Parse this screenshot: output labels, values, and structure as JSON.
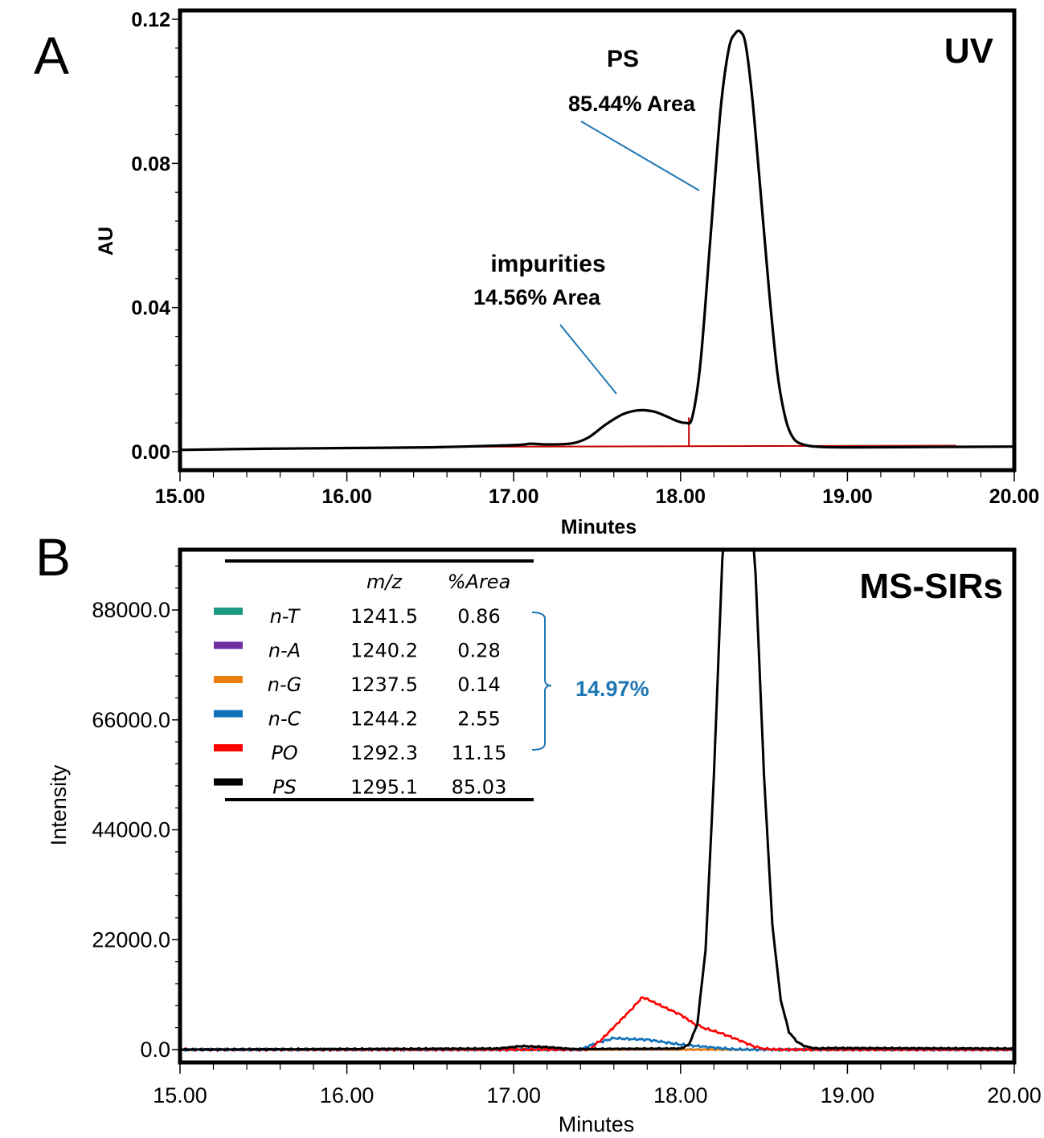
{
  "chart_data": [
    {
      "panel": "A",
      "type": "line",
      "title": "UV",
      "xlabel": "Minutes",
      "ylabel": "AU",
      "xlim": [
        15.0,
        20.0
      ],
      "ylim": [
        -0.005,
        0.121
      ],
      "xticks": [
        "15.00",
        "16.00",
        "17.00",
        "18.00",
        "19.00",
        "20.00"
      ],
      "xtick_values": [
        15,
        16,
        17,
        18,
        19,
        20
      ],
      "yticks": [
        "0.00",
        "0.04",
        "0.08",
        "0.12"
      ],
      "ytick_values": [
        0,
        0.04,
        0.08,
        0.12
      ],
      "grid": false,
      "series": [
        {
          "name": "UV trace",
          "color": "#000000",
          "x": [
            15.0,
            15.5,
            16.0,
            16.5,
            17.0,
            17.1,
            17.2,
            17.35,
            17.45,
            17.55,
            17.65,
            17.72,
            17.78,
            17.85,
            17.92,
            17.98,
            18.03,
            18.07,
            18.12,
            18.18,
            18.24,
            18.29,
            18.33,
            18.36,
            18.39,
            18.43,
            18.48,
            18.53,
            18.58,
            18.63,
            18.68,
            18.75,
            18.85,
            19.0,
            19.5,
            20.0
          ],
          "y": [
            0.0005,
            0.0008,
            0.001,
            0.0012,
            0.0018,
            0.0022,
            0.002,
            0.0023,
            0.004,
            0.0075,
            0.0103,
            0.0113,
            0.0115,
            0.011,
            0.0097,
            0.0085,
            0.008,
            0.0095,
            0.025,
            0.06,
            0.095,
            0.112,
            0.1162,
            0.1165,
            0.113,
            0.098,
            0.072,
            0.045,
            0.022,
            0.009,
            0.0035,
            0.0018,
            0.0013,
            0.0012,
            0.0013,
            0.0014
          ]
        }
      ],
      "baseline": {
        "color": "#c00000",
        "x_start": 16.55,
        "x_end": 19.65,
        "split_at": 18.05
      },
      "annotations": [
        {
          "label": "PS",
          "sublabel": "85.44% Area"
        },
        {
          "label": "impurities",
          "sublabel": "14.56% Area"
        }
      ],
      "pointer_color": "#1f77b4"
    },
    {
      "panel": "B",
      "type": "line",
      "title": "MS-SIRs",
      "xlabel": "Minutes",
      "ylabel": "Intensity",
      "xlim": [
        15.0,
        20.0
      ],
      "ylim": [
        -2500,
        99000
      ],
      "xticks": [
        "15.00",
        "16.00",
        "17.00",
        "18.00",
        "19.00",
        "20.00"
      ],
      "xtick_values": [
        15,
        16,
        17,
        18,
        19,
        20
      ],
      "yticks": [
        "0.0",
        "22000.0",
        "44000.0",
        "66000.0",
        "88000.0"
      ],
      "ytick_values": [
        0,
        22000,
        44000,
        66000,
        88000
      ],
      "grid": false,
      "legend_header": {
        "mz": "m/z",
        "area": "%Area"
      },
      "legend": [
        {
          "name": "n-T",
          "mz": "1241.5",
          "area": "0.86",
          "color": "#1a9a83"
        },
        {
          "name": "n-A",
          "mz": "1240.2",
          "area": "0.28",
          "color": "#7030a0"
        },
        {
          "name": "n-G",
          "mz": "1237.5",
          "area": "0.14",
          "color": "#ed7d0e"
        },
        {
          "name": "n-C",
          "mz": "1244.2",
          "area": "2.55",
          "color": "#0f72ba"
        },
        {
          "name": "PO",
          "mz": "1292.3",
          "area": "11.15",
          "color": "#ff0000"
        },
        {
          "name": "PS",
          "mz": "1295.1",
          "area": "85.03",
          "color": "#000000"
        }
      ],
      "bracket_total": "14.97%",
      "bracket_color": "#1f77b4",
      "series": [
        {
          "name": "PO",
          "color": "#ff0000",
          "x": [
            15.0,
            17.45,
            17.52,
            17.6,
            17.68,
            17.74,
            17.77,
            17.82,
            17.9,
            18.0,
            18.08,
            18.15,
            18.25,
            18.35,
            18.45,
            18.52,
            18.6,
            20.0
          ],
          "y": [
            0,
            0,
            1800,
            4500,
            7200,
            9300,
            10500,
            9800,
            8500,
            7000,
            5200,
            4200,
            3200,
            1900,
            500,
            100,
            0,
            0
          ]
        },
        {
          "name": "n-C",
          "color": "#0f72ba",
          "x": [
            15.0,
            17.4,
            17.5,
            17.55,
            17.6,
            17.7,
            17.8,
            17.9,
            18.0,
            18.1,
            18.2,
            18.3,
            18.4,
            20.0
          ],
          "y": [
            0,
            0,
            1400,
            1800,
            2300,
            2100,
            2000,
            1500,
            1000,
            700,
            400,
            100,
            0,
            0
          ]
        },
        {
          "name": "PS",
          "color": "#000000",
          "x": [
            15.0,
            16.9,
            17.05,
            17.2,
            17.35,
            18.0,
            18.05,
            18.1,
            18.15,
            18.2,
            18.25,
            18.3,
            18.35,
            18.4,
            18.45,
            18.5,
            18.55,
            18.6,
            18.65,
            18.7,
            18.75,
            18.82,
            18.9,
            20.0
          ],
          "y": [
            0,
            200,
            700,
            500,
            100,
            200,
            1000,
            5000,
            20000,
            55000,
            98000,
            120000,
            125000,
            118000,
            95000,
            55000,
            25000,
            10000,
            3500,
            1500,
            600,
            200,
            300,
            200
          ]
        },
        {
          "name": "n-T",
          "color": "#1a9a83",
          "x": [
            15.0,
            17.5,
            17.8,
            18.1,
            20.0
          ],
          "y": [
            0,
            0,
            150,
            0,
            0
          ]
        },
        {
          "name": "n-A",
          "color": "#7030a0",
          "x": [
            15.0,
            17.0,
            17.1,
            17.2,
            20.0
          ],
          "y": [
            0,
            0,
            100,
            0,
            0
          ]
        },
        {
          "name": "n-G",
          "color": "#ed7d0e",
          "x": [
            15.0,
            17.6,
            17.8,
            18.0,
            20.0
          ],
          "y": [
            0,
            0,
            80,
            0,
            0
          ]
        }
      ]
    }
  ],
  "labels": {
    "panel_a": "A",
    "panel_b": "B",
    "uv_title": "UV",
    "ms_title": "MS-SIRs",
    "ps_label": "PS",
    "ps_area": "85.44% Area",
    "imp_label": "impurities",
    "imp_area": "14.56% Area",
    "au": "AU",
    "minutes_a": "Minutes",
    "minutes_b": "Minutes",
    "intensity": "Intensity",
    "legend_mz": "m/z",
    "legend_area": "%Area",
    "bracket_total": "14.97%"
  }
}
